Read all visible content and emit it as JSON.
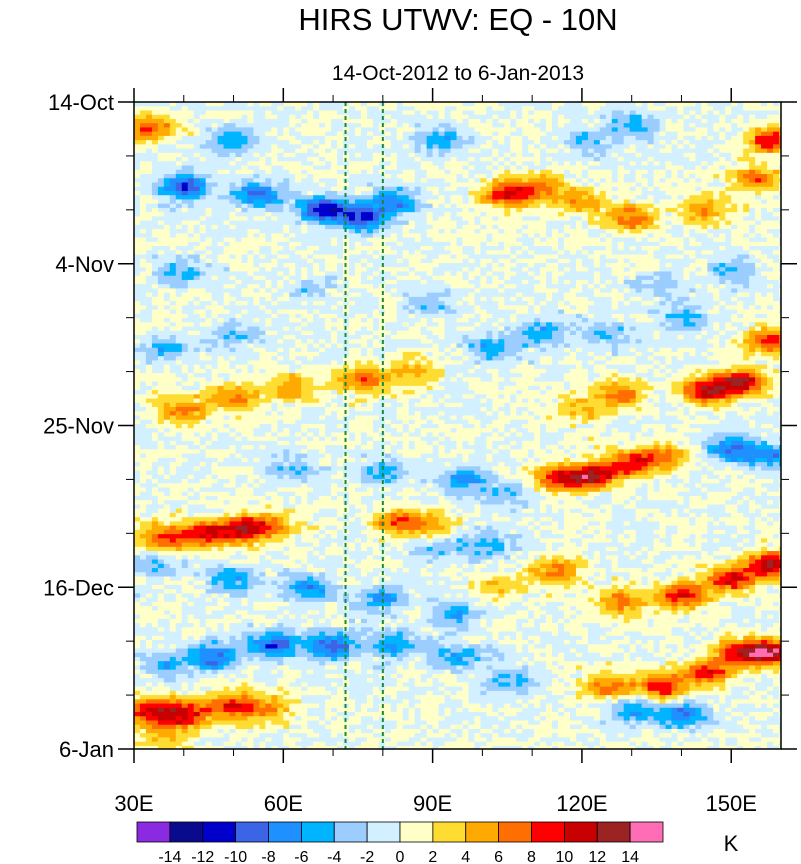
{
  "chart_data": {
    "type": "heatmap",
    "title": "HIRS UTWV: EQ - 10N",
    "subtitle": "14-Oct-2012 to 6-Jan-2013",
    "xlabel": "",
    "ylabel": "",
    "x_range": [
      30,
      160
    ],
    "y_range_days": [
      0,
      84
    ],
    "x_ticks": [
      {
        "value": 30,
        "label": "30E"
      },
      {
        "value": 60,
        "label": "60E"
      },
      {
        "value": 90,
        "label": "90E"
      },
      {
        "value": 120,
        "label": "120E"
      },
      {
        "value": 150,
        "label": "150E"
      }
    ],
    "y_ticks": [
      {
        "day": 0,
        "label": "14-Oct"
      },
      {
        "day": 21,
        "label": "4-Nov"
      },
      {
        "day": 42,
        "label": "25-Nov"
      },
      {
        "day": 63,
        "label": "16-Dec"
      },
      {
        "day": 84,
        "label": "6-Jan"
      }
    ],
    "reference_lines_lon": [
      72.5,
      80
    ],
    "reference_line_color": "#1a8a3a",
    "colorbar": {
      "unit": "K",
      "levels": [
        "-14",
        "-12",
        "-10",
        "-8",
        "-6",
        "-4",
        "-2",
        "0",
        "2",
        "4",
        "6",
        "8",
        "10",
        "12",
        "14"
      ],
      "colors": [
        "#8a2be2",
        "#0a0a8c",
        "#0000cd",
        "#3c64e6",
        "#1e90ff",
        "#00b4ff",
        "#9bcdff",
        "#d2f0ff",
        "#ffffc8",
        "#ffdc32",
        "#ffaa00",
        "#ff6e00",
        "#ff0000",
        "#c80000",
        "#9b2323",
        "#ff6eb4"
      ]
    },
    "features": [
      {
        "lon": 33,
        "day": 79,
        "value": 10
      },
      {
        "lon": 40,
        "day": 79.5,
        "value": 10
      },
      {
        "lon": 50,
        "day": 78.5,
        "value": 9
      },
      {
        "lon": 58,
        "day": 78.8,
        "value": 5
      },
      {
        "lon": 36,
        "day": 73,
        "value": -5
      },
      {
        "lon": 46,
        "day": 72,
        "value": -9
      },
      {
        "lon": 58,
        "day": 70.5,
        "value": -10
      },
      {
        "lon": 70,
        "day": 70.5,
        "value": -9
      },
      {
        "lon": 82,
        "day": 70.5,
        "value": -7
      },
      {
        "lon": 95,
        "day": 72,
        "value": -6
      },
      {
        "lon": 105,
        "day": 75,
        "value": -5
      },
      {
        "lon": 130,
        "day": 79,
        "value": -6
      },
      {
        "lon": 140,
        "day": 79.5,
        "value": -8
      },
      {
        "lon": 125,
        "day": 76,
        "value": 7
      },
      {
        "lon": 136,
        "day": 76,
        "value": 9
      },
      {
        "lon": 145,
        "day": 74,
        "value": 9
      },
      {
        "lon": 152,
        "day": 71.5,
        "value": 10
      },
      {
        "lon": 158,
        "day": 71.5,
        "value": 12
      },
      {
        "lon": 36,
        "day": 82.5,
        "value": 5
      },
      {
        "lon": 128,
        "day": 65,
        "value": 7
      },
      {
        "lon": 140,
        "day": 64,
        "value": 10
      },
      {
        "lon": 150,
        "day": 62,
        "value": 10
      },
      {
        "lon": 158,
        "day": 60,
        "value": 12
      },
      {
        "lon": 115,
        "day": 61,
        "value": 7
      },
      {
        "lon": 104,
        "day": 63,
        "value": 4
      },
      {
        "lon": 34,
        "day": 60,
        "value": -5
      },
      {
        "lon": 50,
        "day": 62,
        "value": -6
      },
      {
        "lon": 65,
        "day": 63,
        "value": -7
      },
      {
        "lon": 80,
        "day": 64.5,
        "value": -6
      },
      {
        "lon": 95,
        "day": 66.5,
        "value": -5
      },
      {
        "lon": 100,
        "day": 57.5,
        "value": -5
      },
      {
        "lon": 90,
        "day": 58,
        "value": -4
      },
      {
        "lon": 36,
        "day": 56.5,
        "value": 8
      },
      {
        "lon": 44,
        "day": 56,
        "value": 9
      },
      {
        "lon": 52,
        "day": 55.5,
        "value": 10
      },
      {
        "lon": 58,
        "day": 55,
        "value": 6
      },
      {
        "lon": 83,
        "day": 54.5,
        "value": 7
      },
      {
        "lon": 90,
        "day": 55,
        "value": 5
      },
      {
        "lon": 115,
        "day": 49,
        "value": 9
      },
      {
        "lon": 122,
        "day": 48.5,
        "value": 11
      },
      {
        "lon": 130,
        "day": 47,
        "value": 9
      },
      {
        "lon": 137,
        "day": 46,
        "value": 6
      },
      {
        "lon": 150,
        "day": 45,
        "value": -8
      },
      {
        "lon": 158,
        "day": 46,
        "value": -7
      },
      {
        "lon": 62,
        "day": 47.5,
        "value": -4
      },
      {
        "lon": 80,
        "day": 48,
        "value": -6
      },
      {
        "lon": 96,
        "day": 49,
        "value": -6
      },
      {
        "lon": 105,
        "day": 51,
        "value": -5
      },
      {
        "lon": 40,
        "day": 40,
        "value": 6
      },
      {
        "lon": 50,
        "day": 38.5,
        "value": 7
      },
      {
        "lon": 62,
        "day": 37,
        "value": 6
      },
      {
        "lon": 76,
        "day": 36,
        "value": 8
      },
      {
        "lon": 86,
        "day": 35,
        "value": 5
      },
      {
        "lon": 145,
        "day": 37.5,
        "value": 10
      },
      {
        "lon": 152,
        "day": 36.5,
        "value": 12
      },
      {
        "lon": 158,
        "day": 31,
        "value": 9
      },
      {
        "lon": 128,
        "day": 38,
        "value": 6
      },
      {
        "lon": 120,
        "day": 40,
        "value": 4
      },
      {
        "lon": 36,
        "day": 32,
        "value": -5
      },
      {
        "lon": 50,
        "day": 30,
        "value": -4
      },
      {
        "lon": 102,
        "day": 32,
        "value": -5
      },
      {
        "lon": 112,
        "day": 30,
        "value": -6
      },
      {
        "lon": 125,
        "day": 30,
        "value": -4
      },
      {
        "lon": 140,
        "day": 28,
        "value": -4
      },
      {
        "lon": 40,
        "day": 22,
        "value": -5
      },
      {
        "lon": 65,
        "day": 24,
        "value": -3
      },
      {
        "lon": 90,
        "day": 26,
        "value": -4
      },
      {
        "lon": 40,
        "day": 11,
        "value": -10
      },
      {
        "lon": 55,
        "day": 12,
        "value": -8
      },
      {
        "lon": 68,
        "day": 14,
        "value": -11
      },
      {
        "lon": 76,
        "day": 15,
        "value": -9
      },
      {
        "lon": 82,
        "day": 13,
        "value": -7
      },
      {
        "lon": 92,
        "day": 5,
        "value": -6
      },
      {
        "lon": 50,
        "day": 5,
        "value": -5
      },
      {
        "lon": 33,
        "day": 3.5,
        "value": 8
      },
      {
        "lon": 105,
        "day": 12,
        "value": 10
      },
      {
        "lon": 112,
        "day": 11,
        "value": 6
      },
      {
        "lon": 120,
        "day": 13,
        "value": 5
      },
      {
        "lon": 130,
        "day": 15,
        "value": 7
      },
      {
        "lon": 145,
        "day": 14,
        "value": 6
      },
      {
        "lon": 155,
        "day": 10,
        "value": 7
      },
      {
        "lon": 158,
        "day": 5,
        "value": 9
      },
      {
        "lon": 122,
        "day": 5,
        "value": -4
      },
      {
        "lon": 130,
        "day": 3,
        "value": -5
      },
      {
        "lon": 150,
        "day": 22,
        "value": -4
      },
      {
        "lon": 135,
        "day": 24,
        "value": -3
      }
    ]
  }
}
